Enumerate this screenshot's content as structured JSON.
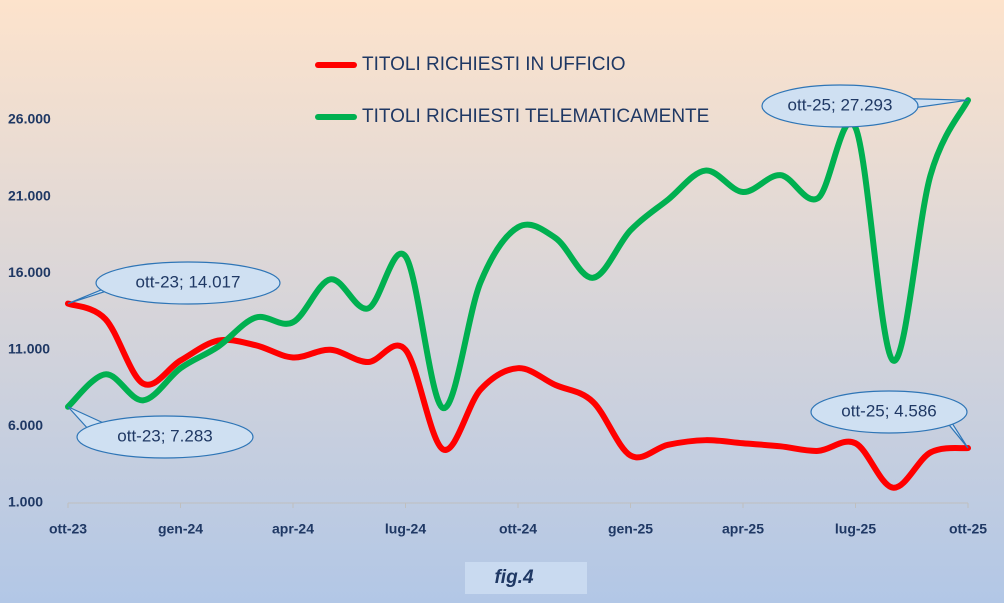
{
  "chart_data": {
    "type": "line",
    "categories": [
      "ott-23",
      null,
      null,
      "gen-24",
      null,
      null,
      "apr-24",
      null,
      null,
      "lug-24",
      null,
      null,
      "ott-24",
      null,
      null,
      "gen-25",
      null,
      null,
      "apr-25",
      null,
      null,
      "lug-25",
      null,
      null,
      "ott-25"
    ],
    "series": [
      {
        "name": "TITOLI RICHIESTI IN UFFICIO",
        "color": "#ff0000",
        "values": [
          14017,
          13000,
          8800,
          10300,
          11600,
          11300,
          10500,
          11000,
          10200,
          11000,
          4500,
          8400,
          9800,
          8700,
          7600,
          4100,
          4800,
          5100,
          4900,
          4700,
          4400,
          4900,
          2000,
          4300,
          4586
        ],
        "value_labels": [
          "ott-23; 14.017",
          null,
          null,
          null,
          null,
          null,
          null,
          null,
          null,
          null,
          null,
          null,
          null,
          null,
          null,
          null,
          null,
          null,
          null,
          null,
          null,
          null,
          null,
          null,
          "ott-25; 4.586"
        ]
      },
      {
        "name": "TITOLI RICHIESTI TELEMATICAMENTE",
        "color": "#00b050",
        "values": [
          7283,
          9400,
          7700,
          9800,
          11200,
          13100,
          12800,
          15600,
          13700,
          17100,
          7200,
          15400,
          19000,
          18300,
          15700,
          18800,
          20800,
          22700,
          21300,
          22400,
          20900,
          25500,
          10300,
          22400,
          27293
        ],
        "value_labels": [
          "ott-23; 7.283",
          null,
          null,
          null,
          null,
          null,
          null,
          null,
          null,
          null,
          null,
          null,
          null,
          null,
          null,
          null,
          null,
          null,
          null,
          null,
          null,
          null,
          null,
          null,
          "ott-25; 27.293"
        ]
      }
    ],
    "ylim": [
      1000,
      26000
    ],
    "yticks": [
      {
        "value": 1000,
        "label": "1.000"
      },
      {
        "value": 6000,
        "label": "6.000"
      },
      {
        "value": 11000,
        "label": "11.000"
      },
      {
        "value": 16000,
        "label": "16.000"
      },
      {
        "value": 21000,
        "label": "21.000"
      },
      {
        "value": 26000,
        "label": "26.000"
      }
    ],
    "caption": "fig.4"
  }
}
